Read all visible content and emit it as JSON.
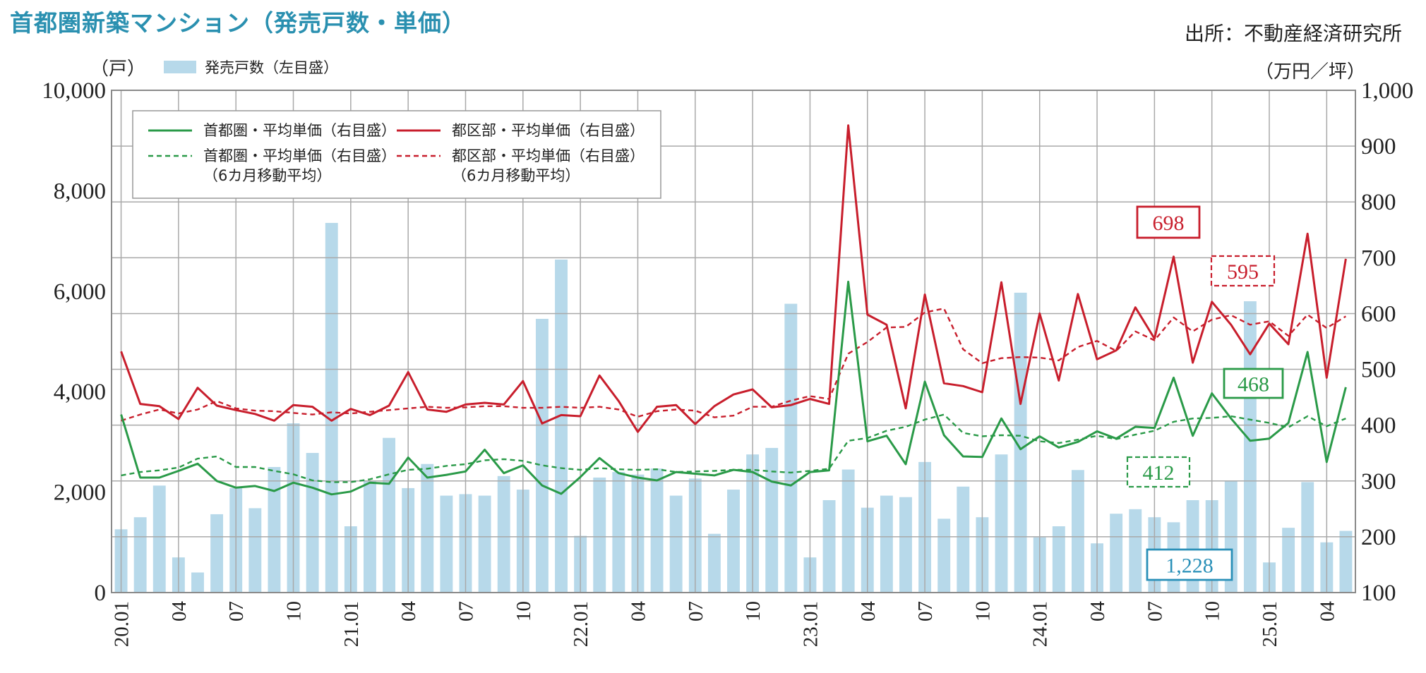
{
  "page": {
    "title": "首都圏新築マンション（発売戸数・単価）",
    "source": "出所：不動産経済研究所"
  },
  "chart_data": {
    "type": "bar+line",
    "title": "首都圏新築マンション（発売戸数・単価）",
    "left_axis": {
      "unit": "（戸）",
      "ylim": [
        0,
        10000
      ],
      "ticks": [
        "0",
        "2,000",
        "4,000",
        "6,000",
        "8,000",
        "10,000"
      ]
    },
    "right_axis": {
      "unit": "（万円／坪）",
      "ylim": [
        100,
        1000
      ],
      "ticks": [
        "100",
        "200",
        "300",
        "400",
        "500",
        "600",
        "700",
        "800",
        "900",
        "1,000"
      ]
    },
    "x_ticks": [
      "20.01",
      "04",
      "07",
      "10",
      "21.01",
      "04",
      "07",
      "10",
      "22.01",
      "04",
      "07",
      "10",
      "23.01",
      "04",
      "07",
      "10",
      "24.01",
      "04",
      "07",
      "10",
      "25.01",
      "04"
    ],
    "grid": true,
    "legend": {
      "bar": "発売戸数（左目盛）",
      "shuto_avg": "首都圏・平均単価（右目盛）",
      "shuto_ma": "首都圏・平均単価（右目盛）",
      "shuto_ma_sub": "（6カ月移動平均）",
      "ku_avg": "都区部・平均単価（右目盛）",
      "ku_ma": "都区部・平均単価（右目盛）",
      "ku_ma_sub": "（6カ月移動平均）"
    },
    "colors": {
      "bar": "#b7d9ea",
      "shuto": "#2a9a48",
      "ku": "#c81e2c",
      "blue_callout": "#2a90b8"
    },
    "callouts": {
      "ku_last": "698",
      "ku_ma_last": "595",
      "shuto_last": "468",
      "shuto_ma_last": "412",
      "units_last": "1,228"
    },
    "months_start": "2020-01",
    "units": [
      1260,
      1500,
      2130,
      700,
      400,
      1560,
      2080,
      1680,
      2500,
      3370,
      2780,
      7360,
      1320,
      2230,
      3080,
      2080,
      2560,
      1930,
      1960,
      1930,
      2320,
      2050,
      5450,
      6630,
      1130,
      2290,
      2400,
      2350,
      2470,
      1930,
      2270,
      1170,
      2050,
      2750,
      2880,
      5750,
      700,
      1840,
      2450,
      1690,
      1930,
      1900,
      2600,
      1470,
      2110,
      1500,
      2750,
      5970,
      1100,
      1320,
      2440,
      980,
      1570,
      1660,
      1500,
      1400,
      1840,
      1840,
      2230,
      5800,
      600,
      1290,
      2200,
      1000,
      1228
    ],
    "shuto_avg": [
      419,
      306,
      306,
      318,
      331,
      300,
      288,
      291,
      282,
      297,
      288,
      276,
      281,
      297,
      295,
      342,
      306,
      311,
      317,
      356,
      314,
      328,
      292,
      277,
      307,
      341,
      314,
      306,
      301,
      316,
      313,
      310,
      320,
      316,
      299,
      292,
      316,
      319,
      657,
      371,
      381,
      330,
      478,
      382,
      344,
      343,
      412,
      357,
      380,
      360,
      370,
      389,
      376,
      397,
      395,
      485,
      381,
      457,
      412,
      372,
      376,
      404,
      531,
      334,
      468
    ],
    "shuto_ma": [
      310,
      316,
      319,
      324,
      340,
      344,
      325,
      325,
      318,
      312,
      301,
      298,
      298,
      303,
      312,
      320,
      322,
      327,
      330,
      337,
      339,
      336,
      328,
      323,
      320,
      323,
      321,
      320,
      321,
      316,
      317,
      318,
      320,
      320,
      317,
      315,
      318,
      322,
      372,
      377,
      390,
      397,
      410,
      419,
      386,
      380,
      382,
      381,
      371,
      368,
      374,
      381,
      375,
      383,
      390,
      406,
      412,
      413,
      416,
      410,
      404,
      396,
      416,
      398,
      412
    ],
    "ku_avg": [
      532,
      438,
      434,
      411,
      467,
      435,
      427,
      420,
      408,
      436,
      433,
      408,
      429,
      418,
      435,
      495,
      428,
      424,
      437,
      440,
      437,
      479,
      403,
      418,
      416,
      489,
      443,
      388,
      433,
      436,
      402,
      434,
      455,
      464,
      432,
      436,
      447,
      438,
      937,
      598,
      580,
      430,
      634,
      475,
      470,
      459,
      656,
      438,
      600,
      480,
      635,
      518,
      534,
      611,
      555,
      702,
      512,
      621,
      580,
      527,
      582,
      545,
      743,
      485,
      698
    ],
    "ku_ma": [
      408,
      419,
      428,
      421,
      428,
      443,
      430,
      426,
      425,
      422,
      419,
      423,
      421,
      424,
      427,
      430,
      433,
      431,
      432,
      434,
      434,
      431,
      431,
      433,
      431,
      433,
      428,
      415,
      425,
      428,
      426,
      414,
      417,
      433,
      433,
      444,
      452,
      447,
      528,
      549,
      575,
      576,
      602,
      609,
      536,
      511,
      520,
      522,
      521,
      516,
      540,
      551,
      533,
      568,
      552,
      593,
      568,
      589,
      597,
      580,
      586,
      560,
      598,
      574,
      595
    ]
  }
}
